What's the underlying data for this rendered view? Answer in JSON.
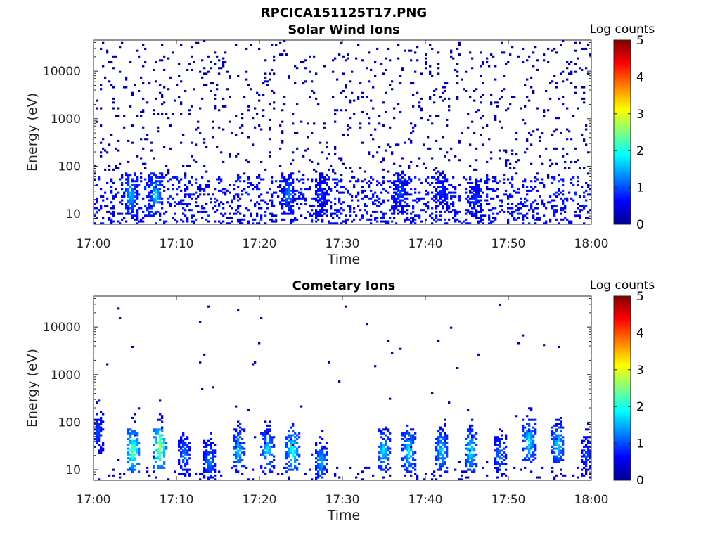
{
  "figure": {
    "title": "RPCICA151125T17.PNG"
  },
  "colors": {
    "axis": "#262626",
    "colormap": [
      "#00008f",
      "#0000ff",
      "#007fff",
      "#00ffff",
      "#7fff7f",
      "#ffff00",
      "#ff7f00",
      "#ff0000",
      "#7f0000"
    ]
  },
  "chart_data": [
    {
      "type": "heatmap",
      "title": "Solar Wind Ions",
      "xlabel": "Time",
      "ylabel": "Energy (eV)",
      "x_ticks": [
        "17:00",
        "17:10",
        "17:20",
        "17:30",
        "17:40",
        "17:50",
        "18:00"
      ],
      "x_range": [
        "17:00",
        "18:00"
      ],
      "y_scale": "log",
      "y_ticks": [
        10,
        100,
        1000,
        10000
      ],
      "y_tick_labels": [
        "10",
        "100",
        "1000",
        "10000"
      ],
      "y_range": [
        6,
        45000
      ],
      "colorbar": {
        "label": "Log counts",
        "ticks": [
          "0",
          "1",
          "2",
          "3",
          "4",
          "5"
        ],
        "range": [
          0,
          5
        ]
      },
      "description_values": {
        "background_scatter_log_counts": 0.3,
        "peak_log_counts": 2.2,
        "low_energy_band_eV": [
          10,
          60
        ],
        "bursts": [
          {
            "time": "17:04.5",
            "energy_eV": 25,
            "log_counts": 1.8
          },
          {
            "time": "17:07.5",
            "energy_eV": 25,
            "log_counts": 2.0
          },
          {
            "time": "17:23.5",
            "energy_eV": 25,
            "log_counts": 1.5
          },
          {
            "time": "17:27.5",
            "energy_eV": 25,
            "log_counts": 1.0
          },
          {
            "time": "17:37",
            "energy_eV": 30,
            "log_counts": 1.2
          },
          {
            "time": "17:42",
            "energy_eV": 30,
            "log_counts": 1.0
          },
          {
            "time": "17:46",
            "energy_eV": 20,
            "log_counts": 1.1
          }
        ]
      }
    },
    {
      "type": "heatmap",
      "title": "Cometary Ions",
      "xlabel": "Time",
      "ylabel": "Energy (eV)",
      "x_ticks": [
        "17:00",
        "17:10",
        "17:20",
        "17:30",
        "17:40",
        "17:50",
        "18:00"
      ],
      "x_range": [
        "17:00",
        "18:00"
      ],
      "y_scale": "log",
      "y_ticks": [
        10,
        100,
        1000,
        10000
      ],
      "y_tick_labels": [
        "10",
        "100",
        "1000",
        "10000"
      ],
      "y_range": [
        6,
        45000
      ],
      "colorbar": {
        "label": "Log counts",
        "ticks": [
          "0",
          "1",
          "2",
          "3",
          "4",
          "5"
        ],
        "range": [
          0,
          5
        ]
      },
      "description_values": {
        "peak_log_counts": 3.2,
        "bursts": [
          {
            "time": "17:00.5",
            "energy_eV": 60,
            "log_counts": 1.2
          },
          {
            "time": "17:04.8",
            "energy_eV": 25,
            "log_counts": 2.8
          },
          {
            "time": "17:08",
            "energy_eV": 30,
            "log_counts": 3.2
          },
          {
            "time": "17:11",
            "energy_eV": 20,
            "log_counts": 1.5
          },
          {
            "time": "17:14",
            "energy_eV": 15,
            "log_counts": 1.5
          },
          {
            "time": "17:17.5",
            "energy_eV": 25,
            "log_counts": 2.0
          },
          {
            "time": "17:21",
            "energy_eV": 25,
            "log_counts": 2.0
          },
          {
            "time": "17:24",
            "energy_eV": 25,
            "log_counts": 2.5
          },
          {
            "time": "17:27.5",
            "energy_eV": 15,
            "log_counts": 1.8
          },
          {
            "time": "17:35",
            "energy_eV": 25,
            "log_counts": 2.0
          },
          {
            "time": "17:38",
            "energy_eV": 25,
            "log_counts": 2.2
          },
          {
            "time": "17:42",
            "energy_eV": 25,
            "log_counts": 2.0
          },
          {
            "time": "17:45.5",
            "energy_eV": 25,
            "log_counts": 2.2
          },
          {
            "time": "17:49",
            "energy_eV": 20,
            "log_counts": 1.5
          },
          {
            "time": "17:52.5",
            "energy_eV": 40,
            "log_counts": 2.2
          },
          {
            "time": "17:56",
            "energy_eV": 35,
            "log_counts": 2.0
          },
          {
            "time": "17:59.5",
            "energy_eV": 20,
            "log_counts": 1.2
          }
        ]
      }
    }
  ]
}
